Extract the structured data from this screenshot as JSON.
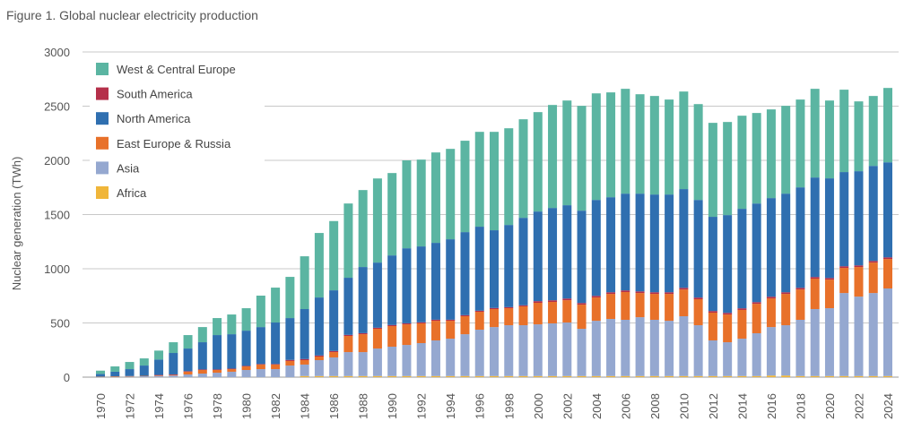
{
  "chart_data": {
    "type": "bar",
    "stacked": true,
    "title": "Figure 1. Global nuclear electricity production",
    "xlabel": "",
    "ylabel": "Nuclear generation (TWh)",
    "ylim": [
      0,
      3000
    ],
    "yticks": [
      0,
      500,
      1000,
      1500,
      2000,
      2500,
      3000
    ],
    "grid": "horizontal",
    "legend_position": "top-left",
    "categories": [
      1970,
      1971,
      1972,
      1973,
      1974,
      1975,
      1976,
      1977,
      1978,
      1979,
      1980,
      1981,
      1982,
      1983,
      1984,
      1985,
      1986,
      1987,
      1988,
      1989,
      1990,
      1991,
      1992,
      1993,
      1994,
      1995,
      1996,
      1997,
      1998,
      1999,
      2000,
      2001,
      2002,
      2003,
      2004,
      2005,
      2006,
      2007,
      2008,
      2009,
      2010,
      2011,
      2012,
      2013,
      2014,
      2015,
      2016,
      2017,
      2018,
      2019,
      2020,
      2021,
      2022,
      2023,
      2024
    ],
    "xtick_labels": [
      "1970",
      "1972",
      "1974",
      "1976",
      "1978",
      "1980",
      "1982",
      "1984",
      "1986",
      "1988",
      "1990",
      "1992",
      "1994",
      "1996",
      "1998",
      "2000",
      "2002",
      "2004",
      "2006",
      "2008",
      "2010",
      "2012",
      "2014",
      "2016",
      "2018",
      "2020",
      "2022",
      "2024"
    ],
    "series": [
      {
        "name": "Africa",
        "color": "#f0b63a",
        "values": [
          0,
          0,
          0,
          0,
          0,
          0,
          0,
          0,
          0,
          0,
          0,
          0,
          0,
          0,
          10,
          10,
          10,
          10,
          10,
          10,
          10,
          10,
          10,
          10,
          10,
          10,
          10,
          10,
          10,
          10,
          10,
          10,
          10,
          10,
          10,
          10,
          10,
          10,
          10,
          10,
          10,
          10,
          10,
          10,
          10,
          10,
          15,
          15,
          10,
          10,
          10,
          10,
          10,
          10,
          10
        ]
      },
      {
        "name": "Asia",
        "color": "#95a8d0",
        "values": [
          2,
          3,
          5,
          8,
          10,
          15,
          25,
          33,
          41,
          50,
          66,
          74,
          74,
          107,
          106,
          147,
          172,
          221,
          221,
          254,
          271,
          287,
          304,
          329,
          345,
          386,
          428,
          452,
          469,
          469,
          477,
          486,
          494,
          436,
          510,
          527,
          519,
          543,
          519,
          510,
          552,
          469,
          329,
          312,
          345,
          395,
          447,
          464,
          519,
          618,
          626,
          766,
          733,
          766,
          808
        ]
      },
      {
        "name": "East Europe & Russia",
        "color": "#e8712a",
        "values": [
          3,
          5,
          5,
          4,
          5,
          5,
          25,
          33,
          25,
          24,
          33,
          42,
          42,
          42,
          41,
          33,
          49,
          149,
          165,
          182,
          190,
          190,
          182,
          181,
          165,
          166,
          165,
          166,
          157,
          174,
          199,
          198,
          206,
          223,
          215,
          231,
          256,
          223,
          239,
          248,
          247,
          240,
          256,
          256,
          265,
          272,
          265,
          289,
          280,
          281,
          264,
          232,
          273,
          281,
          272
        ]
      },
      {
        "name": "South America",
        "color": "#b5304a",
        "values": [
          0,
          0,
          0,
          0,
          5,
          5,
          5,
          5,
          5,
          5,
          5,
          5,
          5,
          10,
          10,
          10,
          10,
          10,
          10,
          10,
          10,
          10,
          10,
          10,
          10,
          10,
          10,
          10,
          10,
          10,
          15,
          15,
          15,
          15,
          15,
          15,
          15,
          15,
          15,
          15,
          15,
          15,
          15,
          15,
          15,
          15,
          15,
          15,
          15,
          15,
          15,
          15,
          15,
          15,
          15
        ]
      },
      {
        "name": "North America",
        "color": "#2f6fb0",
        "values": [
          25,
          42,
          64,
          95,
          142,
          198,
          209,
          251,
          317,
          317,
          325,
          341,
          383,
          386,
          461,
          535,
          560,
          527,
          610,
          601,
          642,
          692,
          700,
          709,
          742,
          766,
          775,
          717,
          758,
          807,
          827,
          852,
          861,
          852,
          885,
          877,
          893,
          902,
          902,
          902,
          911,
          901,
          869,
          902,
          918,
          910,
          910,
          910,
          927,
          918,
          919,
          869,
          869,
          877,
          877
        ]
      },
      {
        "name": "West & Central Europe",
        "color": "#5bb5a2",
        "values": [
          30,
          49,
          66,
          66,
          83,
          99,
          124,
          140,
          157,
          182,
          207,
          290,
          322,
          380,
          487,
          595,
          639,
          685,
          710,
          776,
          760,
          811,
          801,
          834,
          834,
          843,
          875,
          908,
          892,
          909,
          917,
          950,
          966,
          967,
          983,
          967,
          967,
          917,
          909,
          876,
          900,
          884,
          867,
          859,
          859,
          835,
          818,
          810,
          810,
          818,
          718,
          760,
          644,
          645,
          686
        ]
      }
    ],
    "legend_order": [
      "West & Central Europe",
      "South America",
      "North America",
      "East Europe & Russia",
      "Asia",
      "Africa"
    ]
  }
}
